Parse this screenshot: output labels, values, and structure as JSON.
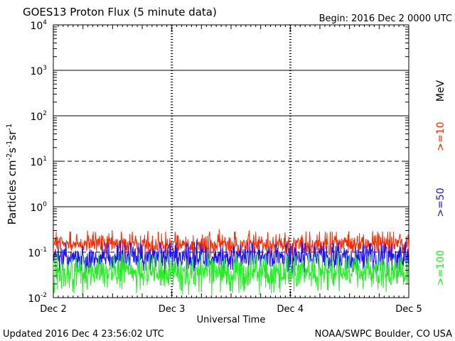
{
  "chart_data": {
    "type": "line",
    "title": "GOES13 Proton Flux (5 minute data)",
    "begin_label": "Begin: 2016 Dec 2 0000 UTC",
    "xlabel": "Universal Time",
    "ylabel": "Particles cm^-2 s^-1 sr^-1",
    "ylabel_parts": {
      "main": "Particles cm",
      "e1": "-2",
      "s": "s",
      "e2": "-1",
      "sr": "sr",
      "e3": "-1"
    },
    "yscale": "log",
    "ylim": [
      0.01,
      10000
    ],
    "yticks": [
      {
        "base": "10",
        "exp": "-2"
      },
      {
        "base": "10",
        "exp": "-1"
      },
      {
        "base": "10",
        "exp": "0"
      },
      {
        "base": "10",
        "exp": "1"
      },
      {
        "base": "10",
        "exp": "2"
      },
      {
        "base": "10",
        "exp": "3"
      },
      {
        "base": "10",
        "exp": "4"
      }
    ],
    "xlim": [
      "2016-12-02",
      "2016-12-05"
    ],
    "xticks": [
      "Dec 2",
      "Dec 3",
      "Dec 4",
      "Dec 5"
    ],
    "unit_label": "MeV",
    "series": [
      {
        "name": ">=10",
        "color": "#ff2a00",
        "level": 0.15,
        "spread": 0.25
      },
      {
        "name": ">=50",
        "color": "#1c10ff",
        "level": 0.075,
        "spread": 0.3
      },
      {
        "name": ">=100",
        "color": "#22ee22",
        "level": 0.035,
        "spread": 0.38
      }
    ],
    "reference_levels": [
      {
        "value": 10,
        "style": "dashed"
      },
      {
        "value": 0.1,
        "style": "dashed"
      }
    ]
  },
  "footer": {
    "updated": "Updated 2016 Dec  4 23:56:02 UTC",
    "source": "NOAA/SWPC Boulder, CO USA"
  }
}
